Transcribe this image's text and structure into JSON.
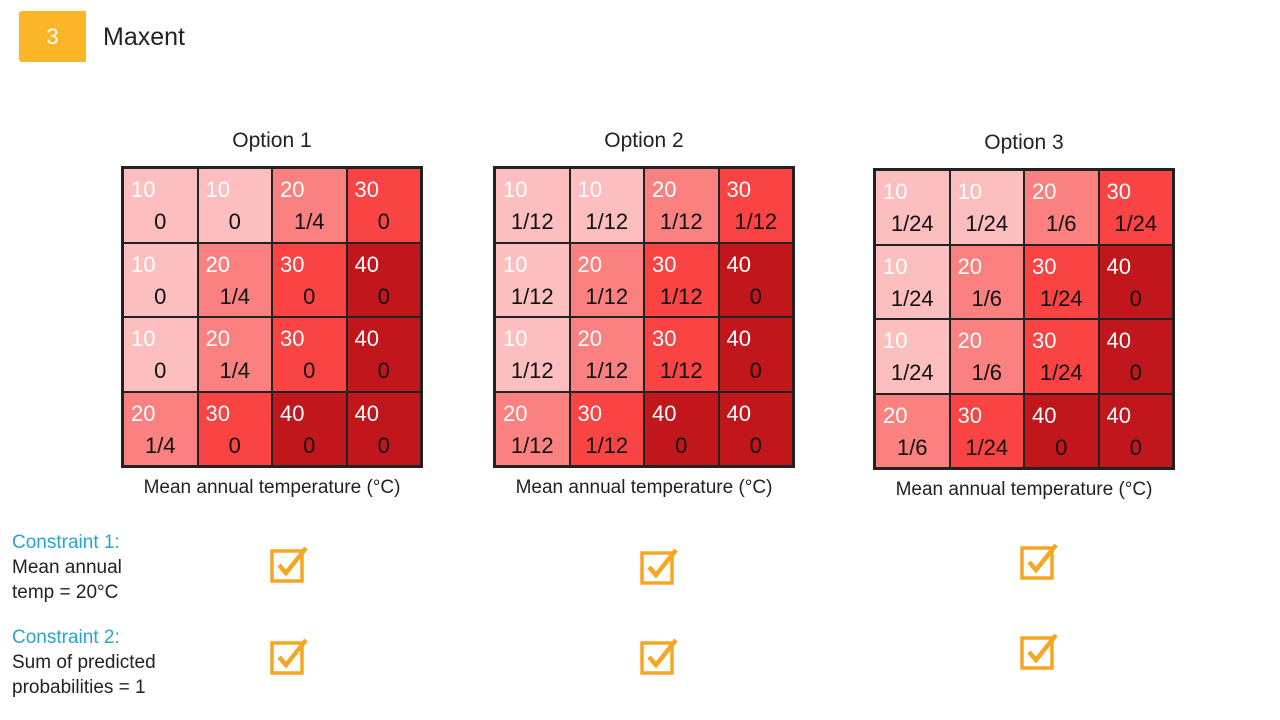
{
  "header": {
    "badge": "3",
    "title": "Maxent"
  },
  "options": [
    {
      "title": "Option 1",
      "caption": "Mean annual temperature (°C)",
      "cells": [
        [
          {
            "temp": 10,
            "prob": "0"
          },
          {
            "temp": 10,
            "prob": "0"
          },
          {
            "temp": 20,
            "prob": "1/4"
          },
          {
            "temp": 30,
            "prob": "0"
          }
        ],
        [
          {
            "temp": 10,
            "prob": "0"
          },
          {
            "temp": 20,
            "prob": "1/4"
          },
          {
            "temp": 30,
            "prob": "0"
          },
          {
            "temp": 40,
            "prob": "0"
          }
        ],
        [
          {
            "temp": 10,
            "prob": "0"
          },
          {
            "temp": 20,
            "prob": "1/4"
          },
          {
            "temp": 30,
            "prob": "0"
          },
          {
            "temp": 40,
            "prob": "0"
          }
        ],
        [
          {
            "temp": 20,
            "prob": "1/4"
          },
          {
            "temp": 30,
            "prob": "0"
          },
          {
            "temp": 40,
            "prob": "0"
          },
          {
            "temp": 40,
            "prob": "0"
          }
        ]
      ]
    },
    {
      "title": "Option 2",
      "caption": "Mean annual temperature (°C)",
      "cells": [
        [
          {
            "temp": 10,
            "prob": "1/12"
          },
          {
            "temp": 10,
            "prob": "1/12"
          },
          {
            "temp": 20,
            "prob": "1/12"
          },
          {
            "temp": 30,
            "prob": "1/12"
          }
        ],
        [
          {
            "temp": 10,
            "prob": "1/12"
          },
          {
            "temp": 20,
            "prob": "1/12"
          },
          {
            "temp": 30,
            "prob": "1/12"
          },
          {
            "temp": 40,
            "prob": "0"
          }
        ],
        [
          {
            "temp": 10,
            "prob": "1/12"
          },
          {
            "temp": 20,
            "prob": "1/12"
          },
          {
            "temp": 30,
            "prob": "1/12"
          },
          {
            "temp": 40,
            "prob": "0"
          }
        ],
        [
          {
            "temp": 20,
            "prob": "1/12"
          },
          {
            "temp": 30,
            "prob": "1/12"
          },
          {
            "temp": 40,
            "prob": "0"
          },
          {
            "temp": 40,
            "prob": "0"
          }
        ]
      ]
    },
    {
      "title": "Option 3",
      "caption": "Mean annual temperature (°C)",
      "cells": [
        [
          {
            "temp": 10,
            "prob": "1/24"
          },
          {
            "temp": 10,
            "prob": "1/24"
          },
          {
            "temp": 20,
            "prob": "1/6"
          },
          {
            "temp": 30,
            "prob": "1/24"
          }
        ],
        [
          {
            "temp": 10,
            "prob": "1/24"
          },
          {
            "temp": 20,
            "prob": "1/6"
          },
          {
            "temp": 30,
            "prob": "1/24"
          },
          {
            "temp": 40,
            "prob": "0"
          }
        ],
        [
          {
            "temp": 10,
            "prob": "1/24"
          },
          {
            "temp": 20,
            "prob": "1/6"
          },
          {
            "temp": 30,
            "prob": "1/24"
          },
          {
            "temp": 40,
            "prob": "0"
          }
        ],
        [
          {
            "temp": 20,
            "prob": "1/6"
          },
          {
            "temp": 30,
            "prob": "1/24"
          },
          {
            "temp": 40,
            "prob": "0"
          },
          {
            "temp": 40,
            "prob": "0"
          }
        ]
      ]
    }
  ],
  "constraints": [
    {
      "label": "Constraint 1:",
      "lines": [
        "Mean annual",
        "temp = 20°C"
      ]
    },
    {
      "label": "Constraint 2:",
      "lines": [
        "Sum of predicted",
        "probabilities = 1"
      ]
    }
  ]
}
